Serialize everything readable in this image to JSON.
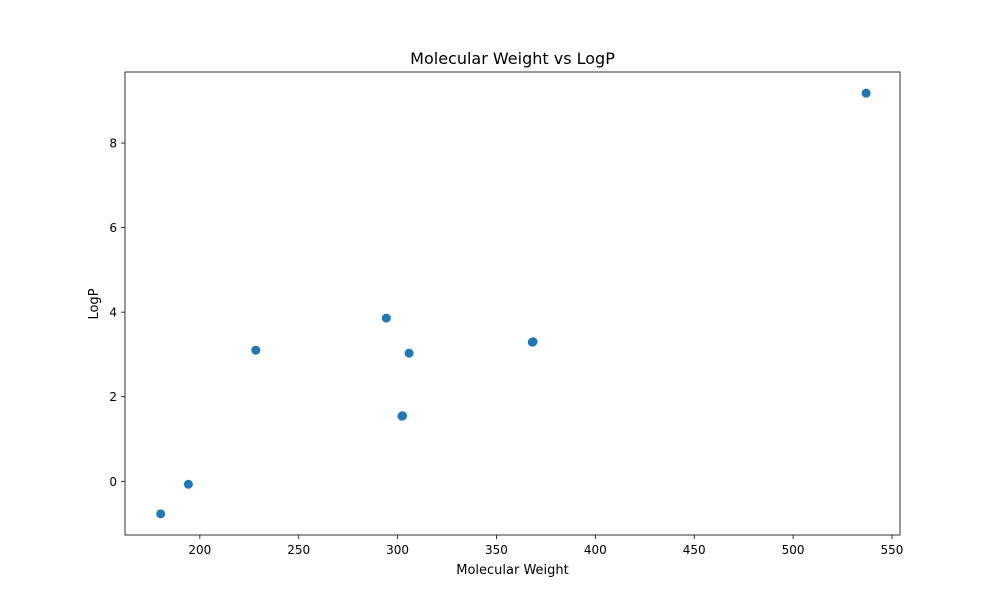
{
  "chart_data": {
    "type": "scatter",
    "title": "Molecular Weight vs LogP",
    "xlabel": "Molecular Weight",
    "ylabel": "LogP",
    "xlim": [
      162.15,
      554.05
    ],
    "ylim": [
      -1.27,
      9.68
    ],
    "xticks": [
      200,
      250,
      300,
      350,
      400,
      450,
      500,
      550
    ],
    "yticks": [
      0,
      2,
      4,
      6,
      8
    ],
    "grid": false,
    "legend": "none",
    "marker_color": "#1f77b4",
    "points": [
      {
        "x": 180.2,
        "y": -0.77
      },
      {
        "x": 194.2,
        "y": -0.07
      },
      {
        "x": 228.3,
        "y": 3.1
      },
      {
        "x": 294.3,
        "y": 3.86
      },
      {
        "x": 302.2,
        "y": 1.54
      },
      {
        "x": 302.5,
        "y": 1.55
      },
      {
        "x": 305.8,
        "y": 3.03
      },
      {
        "x": 368.1,
        "y": 3.29
      },
      {
        "x": 368.5,
        "y": 3.3
      },
      {
        "x": 536.9,
        "y": 9.18
      }
    ]
  }
}
